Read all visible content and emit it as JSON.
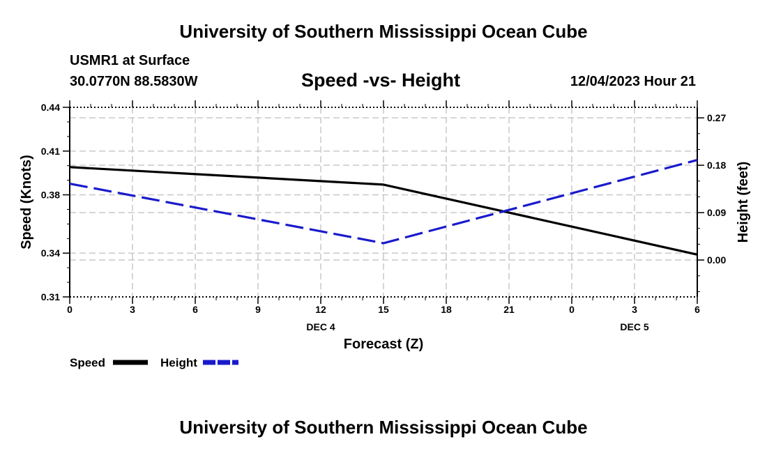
{
  "header": {
    "title": "University of Southern Mississippi Ocean Cube",
    "station": "USMR1 at Surface",
    "coordinates": "30.0770N  88.5830W",
    "datetime": "12/04/2023 Hour 21",
    "footer_title": "University of Southern Mississippi Ocean Cube"
  },
  "chart_data": {
    "type": "line",
    "title": "Speed -vs- Height",
    "xlabel": "Forecast (Z)",
    "ylabel": "Speed (Knots)",
    "y2label": "Height (feet)",
    "x": [
      0,
      3,
      6,
      9,
      12,
      15,
      18,
      21,
      24,
      27,
      30
    ],
    "x_tick_labels": [
      "0",
      "3",
      "6",
      "9",
      "12",
      "15",
      "18",
      "21",
      "0",
      "3",
      "6"
    ],
    "date_labels": [
      {
        "label": "DEC 4",
        "at_x": 12
      },
      {
        "label": "DEC 5",
        "at_x": 27
      }
    ],
    "xlim": [
      0,
      30
    ],
    "ylim": [
      0.31,
      0.44
    ],
    "y_ticks": [
      0.31,
      0.34,
      0.38,
      0.41,
      0.44
    ],
    "y_tick_labels": [
      "0.31",
      "0.34",
      "0.38",
      "0.41",
      "0.44"
    ],
    "y2lim": [
      -0.07,
      0.29
    ],
    "y2_ticks": [
      0.0,
      0.09,
      0.18,
      0.27
    ],
    "y2_tick_labels": [
      "0.00",
      "0.09",
      "0.18",
      "0.27"
    ],
    "grid": true,
    "series": [
      {
        "name": "Speed",
        "axis": "left",
        "color": "#000000",
        "style": "solid",
        "x": [
          0,
          15,
          30
        ],
        "values": [
          0.399,
          0.387,
          0.339
        ]
      },
      {
        "name": "Height",
        "axis": "right",
        "color": "#1a1acc",
        "style": "dashed",
        "x": [
          0,
          15,
          30
        ],
        "values": [
          0.145,
          0.032,
          0.19
        ]
      }
    ],
    "legend": [
      "Speed",
      "Height"
    ]
  }
}
